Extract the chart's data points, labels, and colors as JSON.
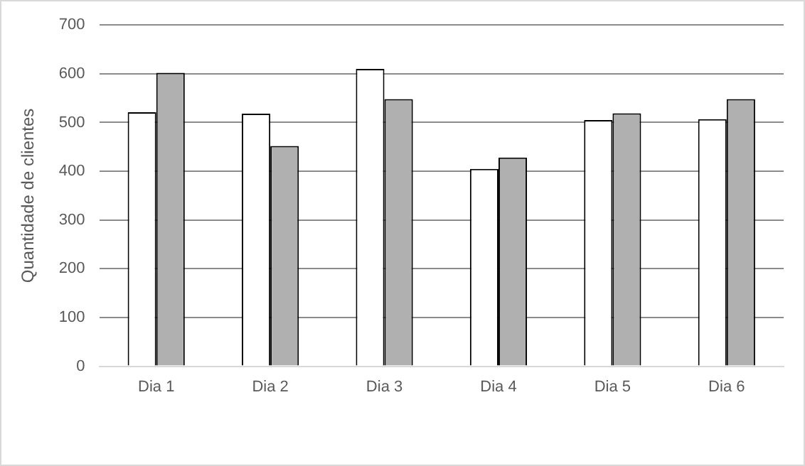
{
  "chart_data": {
    "type": "bar",
    "ylabel": "Quantidade de clientes",
    "categories": [
      "Dia 1",
      "Dia 2",
      "Dia 3",
      "Dia 4",
      "Dia 5",
      "Dia 6"
    ],
    "series": [
      {
        "color": "#ffffff",
        "values": [
          521,
          518,
          610,
          405,
          505,
          507
        ]
      },
      {
        "color": "#b0b0b0",
        "values": [
          602,
          452,
          548,
          428,
          519,
          548
        ]
      }
    ],
    "ylim": [
      0,
      700
    ],
    "yticks": [
      0,
      100,
      200,
      300,
      400,
      500,
      600,
      700
    ],
    "grid": "y"
  }
}
